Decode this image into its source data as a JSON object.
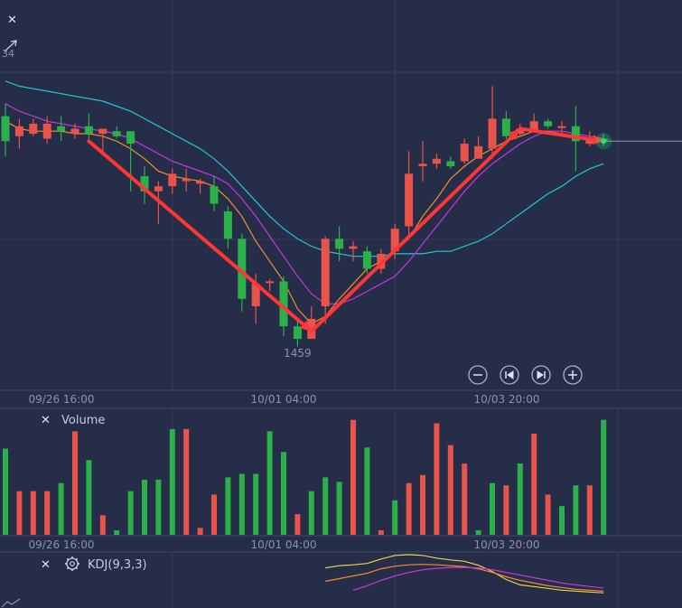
{
  "main_panel": {
    "x_ticks": [
      "09/26 16:00",
      "10/01 04:00",
      "10/03 20:00"
    ],
    "low_annotation": "1459",
    "topleft_label": "34",
    "nav_buttons": [
      "zoom-out",
      "go-first",
      "go-last",
      "zoom-in"
    ]
  },
  "volume_panel": {
    "title": "Volume",
    "x_ticks": [
      "09/26 16:00",
      "10/01 04:00",
      "10/03 20:00"
    ]
  },
  "kdj_panel": {
    "title": "KDJ(9,3,3)"
  },
  "colors": {
    "background": "#262d48",
    "up": "#2bb04a",
    "down": "#e8534b",
    "ma_fast": "#f0902a",
    "ma_mid": "#c537d8",
    "ma_slow": "#27c4d4",
    "arrow": "#ff3636",
    "kdj_k": "#e8d64a",
    "kdj_d": "#f0902a",
    "kdj_j": "#c537d8"
  },
  "chart_data": [
    {
      "type": "candlestick",
      "name": "price",
      "candles": [
        {
          "o": 1548,
          "h": 1553,
          "l": 1532,
          "c": 1538,
          "dir": "up"
        },
        {
          "o": 1544,
          "h": 1547,
          "l": 1535,
          "c": 1540,
          "dir": "down"
        },
        {
          "o": 1545,
          "h": 1547,
          "l": 1540,
          "c": 1541,
          "dir": "down"
        },
        {
          "o": 1539,
          "h": 1548,
          "l": 1537,
          "c": 1545,
          "dir": "down"
        },
        {
          "o": 1544,
          "h": 1548,
          "l": 1538,
          "c": 1542,
          "dir": "up"
        },
        {
          "o": 1541,
          "h": 1545,
          "l": 1539,
          "c": 1543,
          "dir": "down"
        },
        {
          "o": 1544,
          "h": 1549,
          "l": 1537,
          "c": 1541,
          "dir": "up"
        },
        {
          "o": 1541,
          "h": 1543,
          "l": 1534,
          "c": 1543,
          "dir": "down"
        },
        {
          "o": 1542,
          "h": 1544,
          "l": 1539,
          "c": 1540,
          "dir": "up"
        },
        {
          "o": 1537,
          "h": 1542,
          "l": 1518,
          "c": 1542,
          "dir": "up"
        },
        {
          "o": 1524,
          "h": 1528,
          "l": 1513,
          "c": 1518,
          "dir": "up"
        },
        {
          "o": 1518,
          "h": 1522,
          "l": 1505,
          "c": 1520,
          "dir": "down"
        },
        {
          "o": 1525,
          "h": 1527,
          "l": 1517,
          "c": 1520,
          "dir": "down"
        },
        {
          "o": 1522,
          "h": 1527,
          "l": 1518,
          "c": 1523,
          "dir": "down"
        },
        {
          "o": 1521,
          "h": 1523,
          "l": 1517,
          "c": 1522,
          "dir": "down"
        },
        {
          "o": 1520,
          "h": 1524,
          "l": 1510,
          "c": 1513,
          "dir": "up"
        },
        {
          "o": 1510,
          "h": 1512,
          "l": 1495,
          "c": 1499,
          "dir": "up"
        },
        {
          "o": 1499,
          "h": 1501,
          "l": 1470,
          "c": 1475,
          "dir": "up"
        },
        {
          "o": 1481,
          "h": 1485,
          "l": 1465,
          "c": 1472,
          "dir": "down"
        },
        {
          "o": 1482,
          "h": 1483,
          "l": 1478,
          "c": 1482,
          "dir": "down"
        },
        {
          "o": 1482,
          "h": 1484,
          "l": 1460,
          "c": 1464,
          "dir": "up"
        },
        {
          "o": 1464,
          "h": 1466,
          "l": 1456,
          "c": 1459,
          "dir": "up"
        },
        {
          "o": 1459,
          "h": 1472,
          "l": 1459,
          "c": 1467,
          "dir": "down"
        },
        {
          "o": 1472,
          "h": 1500,
          "l": 1465,
          "c": 1499,
          "dir": "down"
        },
        {
          "o": 1499,
          "h": 1504,
          "l": 1490,
          "c": 1495,
          "dir": "up"
        },
        {
          "o": 1496,
          "h": 1498,
          "l": 1490,
          "c": 1495,
          "dir": "down"
        },
        {
          "o": 1494,
          "h": 1496,
          "l": 1485,
          "c": 1487,
          "dir": "up"
        },
        {
          "o": 1487,
          "h": 1495,
          "l": 1485,
          "c": 1493,
          "dir": "down"
        },
        {
          "o": 1494,
          "h": 1505,
          "l": 1491,
          "c": 1503,
          "dir": "down"
        },
        {
          "o": 1504,
          "h": 1534,
          "l": 1500,
          "c": 1525,
          "dir": "down"
        },
        {
          "o": 1528,
          "h": 1538,
          "l": 1522,
          "c": 1529,
          "dir": "down"
        },
        {
          "o": 1529,
          "h": 1533,
          "l": 1527,
          "c": 1531,
          "dir": "down"
        },
        {
          "o": 1530,
          "h": 1532,
          "l": 1527,
          "c": 1528,
          "dir": "up"
        },
        {
          "o": 1530,
          "h": 1539,
          "l": 1529,
          "c": 1537,
          "dir": "down"
        },
        {
          "o": 1536,
          "h": 1540,
          "l": 1532,
          "c": 1531,
          "dir": "down"
        },
        {
          "o": 1535,
          "h": 1560,
          "l": 1531,
          "c": 1547,
          "dir": "down"
        },
        {
          "o": 1547,
          "h": 1550,
          "l": 1539,
          "c": 1540,
          "dir": "up"
        },
        {
          "o": 1541,
          "h": 1545,
          "l": 1540,
          "c": 1543,
          "dir": "down"
        },
        {
          "o": 1546,
          "h": 1549,
          "l": 1542,
          "c": 1542,
          "dir": "down"
        },
        {
          "o": 1546,
          "h": 1547,
          "l": 1543,
          "c": 1544,
          "dir": "up"
        },
        {
          "o": 1544,
          "h": 1546,
          "l": 1541,
          "c": 1544,
          "dir": "down"
        },
        {
          "o": 1544,
          "h": 1552,
          "l": 1526,
          "c": 1538,
          "dir": "up"
        },
        {
          "o": 1537,
          "h": 1542,
          "l": 1536,
          "c": 1539,
          "dir": "down"
        },
        {
          "o": 1539,
          "h": 1541,
          "l": 1536,
          "c": 1538,
          "dir": "up"
        }
      ],
      "ma_fast": [
        1546,
        1543,
        1542,
        1542,
        1542,
        1541,
        1541,
        1540,
        1538,
        1535,
        1531,
        1526,
        1524,
        1523,
        1522,
        1520,
        1515,
        1508,
        1498,
        1490,
        1482,
        1471,
        1465,
        1468,
        1475,
        1481,
        1487,
        1490,
        1494,
        1499,
        1508,
        1515,
        1523,
        1528,
        1532,
        1535,
        1538,
        1540,
        1542,
        1542,
        1541,
        1540,
        1539,
        1538
      ],
      "ma_mid": [
        1553,
        1550,
        1548,
        1546,
        1545,
        1544,
        1543,
        1542,
        1541,
        1539,
        1536,
        1533,
        1530,
        1528,
        1526,
        1524,
        1521,
        1515,
        1508,
        1500,
        1492,
        1484,
        1477,
        1473,
        1473,
        1475,
        1478,
        1481,
        1484,
        1490,
        1497,
        1504,
        1511,
        1518,
        1524,
        1529,
        1533,
        1537,
        1540,
        1542,
        1542,
        1541,
        1540,
        1539
      ],
      "ma_slow": [
        1562,
        1560,
        1559,
        1558,
        1557,
        1556,
        1555,
        1554,
        1552,
        1550,
        1547,
        1544,
        1541,
        1538,
        1535,
        1531,
        1526,
        1520,
        1514,
        1508,
        1503,
        1499,
        1496,
        1494,
        1493,
        1492,
        1492,
        1492,
        1493,
        1493,
        1493,
        1494,
        1494,
        1496,
        1498,
        1501,
        1505,
        1509,
        1513,
        1517,
        1520,
        1524,
        1527,
        1529
      ],
      "arrows": [
        {
          "from": [
            6,
            1538
          ],
          "to": [
            22,
            1462
          ]
        },
        {
          "from": [
            22,
            1462
          ],
          "to": [
            37,
            1543
          ]
        },
        {
          "from": [
            37,
            1543
          ],
          "to": [
            43,
            1538
          ]
        }
      ],
      "last_price": 1538,
      "low_marker": {
        "index": 21,
        "value": 1459
      },
      "y_range": [
        1450,
        1580
      ]
    },
    {
      "type": "bar",
      "name": "Volume",
      "values": [
        75,
        38,
        38,
        38,
        45,
        90,
        65,
        17,
        0,
        38,
        48,
        48,
        92,
        92,
        6,
        35,
        50,
        53,
        53,
        90,
        72,
        18,
        38,
        50,
        46,
        100,
        76,
        0,
        30,
        45,
        52,
        97,
        78,
        62,
        0,
        45,
        43,
        62,
        88,
        35,
        25,
        43,
        43,
        100
      ],
      "colors_dir": [
        "up",
        "down",
        "down",
        "down",
        "up",
        "down",
        "up",
        "down",
        "up",
        "up",
        "up",
        "up",
        "up",
        "down",
        "down",
        "down",
        "up",
        "up",
        "up",
        "up",
        "up",
        "down",
        "up",
        "up",
        "up",
        "down",
        "up",
        "down",
        "up",
        "down",
        "down",
        "down",
        "down",
        "down",
        "up",
        "up",
        "down",
        "up",
        "down",
        "down",
        "up",
        "up",
        "down",
        "up"
      ],
      "y_range": [
        0,
        110
      ]
    },
    {
      "type": "line",
      "name": "KDJ",
      "series": [
        {
          "key": "K",
          "values": [
            null,
            null,
            null,
            null,
            null,
            null,
            null,
            null,
            null,
            null,
            null,
            null,
            null,
            null,
            null,
            null,
            null,
            null,
            null,
            null,
            null,
            null,
            null,
            90,
            95,
            97,
            100,
            110,
            118,
            120,
            118,
            112,
            108,
            105,
            96,
            82,
            64,
            52,
            48,
            44,
            40,
            38,
            36,
            34
          ]
        },
        {
          "key": "D",
          "values": [
            null,
            null,
            null,
            null,
            null,
            null,
            null,
            null,
            null,
            null,
            null,
            null,
            null,
            null,
            null,
            null,
            null,
            null,
            null,
            null,
            null,
            null,
            null,
            60,
            66,
            72,
            78,
            88,
            94,
            97,
            98,
            97,
            95,
            93,
            88,
            80,
            70,
            62,
            56,
            50,
            46,
            42,
            40,
            38
          ]
        },
        {
          "key": "J",
          "values": [
            null,
            null,
            null,
            null,
            null,
            null,
            null,
            null,
            null,
            null,
            null,
            null,
            null,
            null,
            null,
            null,
            null,
            null,
            null,
            null,
            null,
            null,
            null,
            null,
            null,
            40,
            50,
            62,
            72,
            80,
            86,
            89,
            91,
            91,
            90,
            86,
            80,
            74,
            68,
            62,
            56,
            52,
            48,
            45
          ]
        }
      ],
      "y_range": [
        0,
        140
      ]
    }
  ]
}
